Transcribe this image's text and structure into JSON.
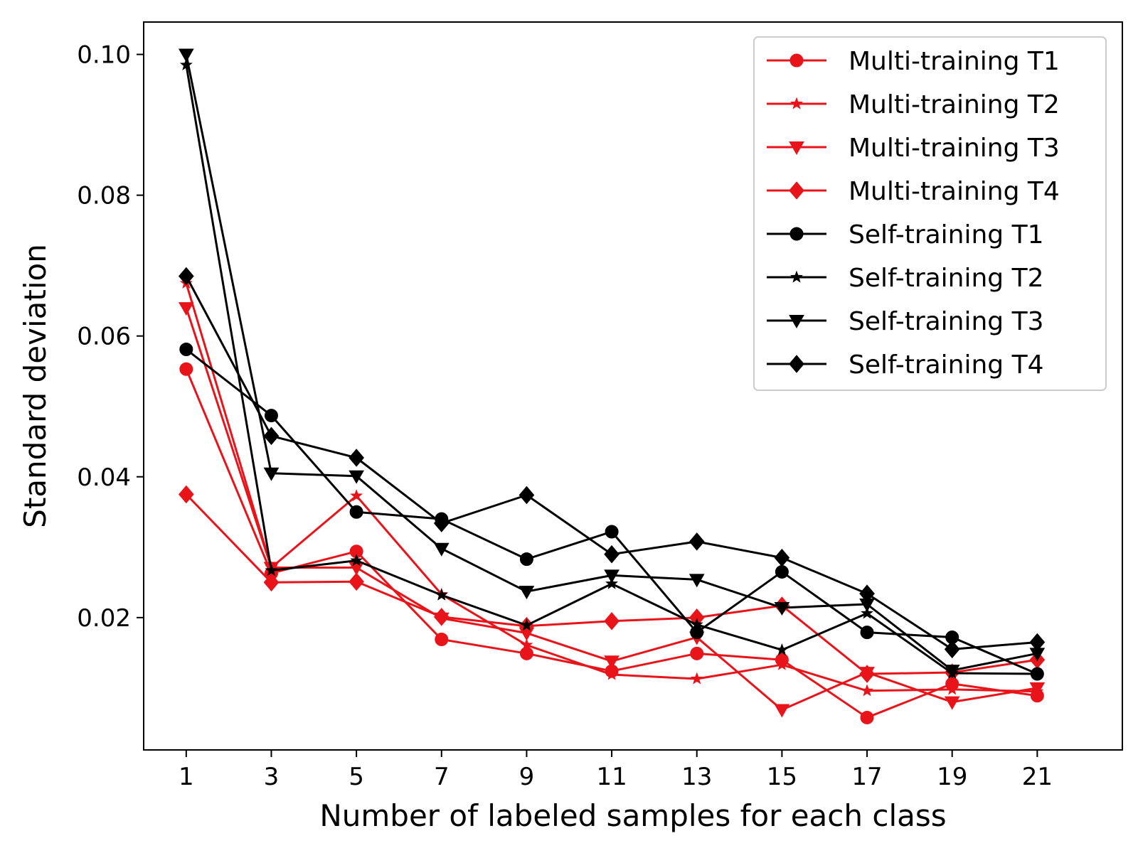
{
  "chart_data": {
    "type": "line",
    "title": "",
    "xlabel": "Number of labeled samples for each class",
    "ylabel": "Standard deviation",
    "x": [
      1,
      3,
      5,
      7,
      9,
      11,
      13,
      15,
      17,
      19,
      21
    ],
    "x_tick_labels": [
      "1",
      "3",
      "5",
      "7",
      "9",
      "11",
      "13",
      "15",
      "17",
      "19",
      "21"
    ],
    "y_tick_values": [
      0.02,
      0.04,
      0.06,
      0.08,
      0.1
    ],
    "y_tick_labels": [
      "0.02",
      "0.04",
      "0.06",
      "0.08",
      "0.10"
    ],
    "xlim": [
      0,
      23
    ],
    "ylim": [
      0.0012,
      0.1046
    ],
    "grid": false,
    "legend_position": "top-right",
    "series": [
      {
        "name": "Multi-training T1",
        "color": "#e8141a",
        "marker": "circle",
        "values": [
          0.0553,
          0.0263,
          0.0294,
          0.0169,
          0.0149,
          0.0124,
          0.0149,
          0.014,
          0.0058,
          0.0106,
          0.0089
        ]
      },
      {
        "name": "Multi-training T2",
        "color": "#e8141a",
        "marker": "star",
        "values": [
          0.0675,
          0.0271,
          0.0373,
          0.0233,
          0.0161,
          0.0119,
          0.0113,
          0.0133,
          0.0096,
          0.0098,
          0.0095
        ]
      },
      {
        "name": "Multi-training T3",
        "color": "#e8141a",
        "marker": "triangle-down",
        "values": [
          0.064,
          0.0271,
          0.0271,
          0.0199,
          0.0178,
          0.0138,
          0.0172,
          0.0069,
          0.0122,
          0.008,
          0.01
        ]
      },
      {
        "name": "Multi-training T4",
        "color": "#e8141a",
        "marker": "diamond",
        "values": [
          0.0375,
          0.025,
          0.0251,
          0.0201,
          0.0188,
          0.0195,
          0.02,
          0.0217,
          0.012,
          0.0122,
          0.014
        ]
      },
      {
        "name": "Self-training T1",
        "color": "#000000",
        "marker": "circle",
        "values": [
          0.0581,
          0.0487,
          0.035,
          0.034,
          0.0283,
          0.0322,
          0.0179,
          0.0265,
          0.0179,
          0.0172,
          0.012
        ]
      },
      {
        "name": "Self-training T2",
        "color": "#000000",
        "marker": "star",
        "values": [
          0.0985,
          0.0267,
          0.0281,
          0.0232,
          0.0189,
          0.0248,
          0.019,
          0.0154,
          0.0206,
          0.0121,
          0.012
        ]
      },
      {
        "name": "Self-training T3",
        "color": "#000000",
        "marker": "triangle-down",
        "values": [
          0.1,
          0.0405,
          0.0401,
          0.0298,
          0.0237,
          0.026,
          0.0254,
          0.0214,
          0.0219,
          0.0125,
          0.0149
        ]
      },
      {
        "name": "Self-training T4",
        "color": "#000000",
        "marker": "diamond",
        "values": [
          0.0685,
          0.0458,
          0.0427,
          0.0334,
          0.0374,
          0.029,
          0.0308,
          0.0285,
          0.0234,
          0.0155,
          0.0165
        ]
      }
    ]
  }
}
